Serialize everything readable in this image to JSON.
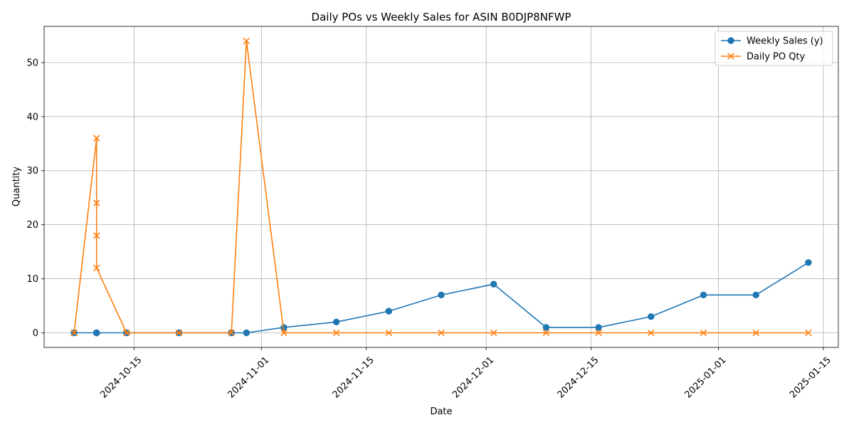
{
  "chart_data": {
    "type": "line",
    "title": "Daily POs vs Weekly Sales for ASIN B0DJP8NFWP",
    "xlabel": "Date",
    "ylabel": "Quantity",
    "x_range": [
      "2024-10-03",
      "2025-01-17"
    ],
    "ylim": [
      -2.7,
      56.7
    ],
    "x_ticks": [
      "2024-10-15",
      "2024-11-01",
      "2024-11-15",
      "2024-12-01",
      "2024-12-15",
      "2025-01-01",
      "2025-01-15"
    ],
    "y_ticks": [
      0,
      10,
      20,
      30,
      40,
      50
    ],
    "grid": true,
    "legend_position": "top-right",
    "series": [
      {
        "name": "Weekly Sales (y)",
        "color": "#1f77b4",
        "marker": "circle",
        "points": [
          [
            "2024-10-07",
            0
          ],
          [
            "2024-10-10",
            0
          ],
          [
            "2024-10-10",
            0
          ],
          [
            "2024-10-10",
            0
          ],
          [
            "2024-10-10",
            0
          ],
          [
            "2024-10-14",
            0
          ],
          [
            "2024-10-21",
            0
          ],
          [
            "2024-10-28",
            0
          ],
          [
            "2024-10-30",
            0
          ],
          [
            "2024-11-04",
            1
          ],
          [
            "2024-11-11",
            2
          ],
          [
            "2024-11-18",
            4
          ],
          [
            "2024-11-25",
            7
          ],
          [
            "2024-12-02",
            9
          ],
          [
            "2024-12-09",
            1
          ],
          [
            "2024-12-16",
            1
          ],
          [
            "2024-12-23",
            3
          ],
          [
            "2024-12-30",
            7
          ],
          [
            "2025-01-06",
            7
          ],
          [
            "2025-01-13",
            13
          ]
        ]
      },
      {
        "name": "Daily PO Qty",
        "color": "#ff7f0e",
        "marker": "x",
        "points": [
          [
            "2024-10-07",
            0
          ],
          [
            "2024-10-10",
            36
          ],
          [
            "2024-10-10",
            24
          ],
          [
            "2024-10-10",
            18
          ],
          [
            "2024-10-10",
            12
          ],
          [
            "2024-10-14",
            0
          ],
          [
            "2024-10-21",
            0
          ],
          [
            "2024-10-28",
            0
          ],
          [
            "2024-10-30",
            54
          ],
          [
            "2024-11-04",
            0
          ],
          [
            "2024-11-11",
            0
          ],
          [
            "2024-11-18",
            0
          ],
          [
            "2024-11-25",
            0
          ],
          [
            "2024-12-02",
            0
          ],
          [
            "2024-12-09",
            0
          ],
          [
            "2024-12-16",
            0
          ],
          [
            "2024-12-23",
            0
          ],
          [
            "2024-12-30",
            0
          ],
          [
            "2025-01-06",
            0
          ],
          [
            "2025-01-13",
            0
          ]
        ]
      }
    ]
  }
}
